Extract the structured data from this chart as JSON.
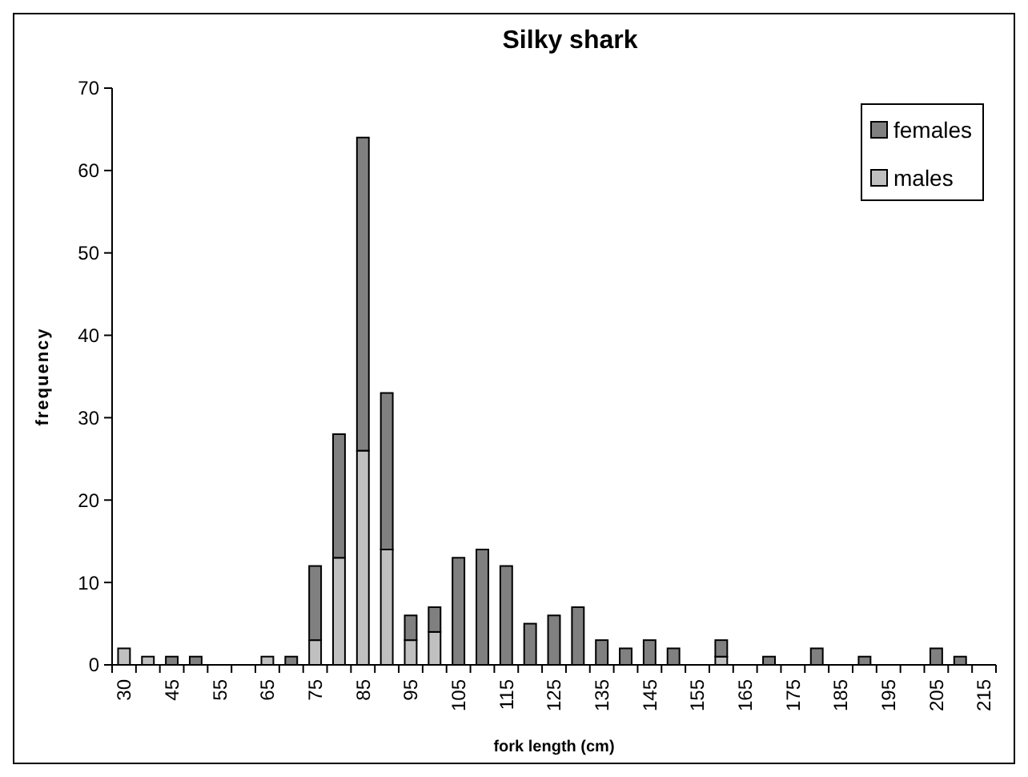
{
  "chart_data": {
    "type": "bar",
    "title": "Silky shark",
    "xlabel": "fork length (cm)",
    "ylabel": "frequency",
    "categories": [
      "30",
      null,
      "45",
      null,
      "55",
      null,
      "65",
      null,
      "75",
      null,
      "85",
      null,
      "95",
      null,
      "105",
      null,
      "115",
      null,
      "125",
      null,
      "135",
      null,
      "145",
      null,
      "155",
      null,
      "165",
      null,
      "175",
      null,
      "185",
      null,
      "195",
      null,
      "205",
      null,
      "215"
    ],
    "series": [
      {
        "name": "males",
        "color": "#c0c0c0",
        "values": [
          2,
          1,
          0,
          0,
          0,
          0,
          1,
          0,
          3,
          13,
          26,
          14,
          3,
          4,
          0,
          0,
          0,
          0,
          0,
          0,
          0,
          0,
          0,
          0,
          0,
          1,
          0,
          0,
          0,
          0,
          0,
          0,
          0,
          0,
          0,
          0,
          0
        ]
      },
      {
        "name": "females",
        "color": "#808080",
        "values": [
          0,
          0,
          1,
          1,
          0,
          0,
          0,
          1,
          9,
          15,
          38,
          19,
          3,
          3,
          13,
          14,
          12,
          5,
          6,
          7,
          3,
          2,
          3,
          2,
          0,
          2,
          0,
          1,
          0,
          2,
          0,
          1,
          0,
          0,
          2,
          1,
          0
        ]
      }
    ],
    "stacked": true,
    "ylim": [
      0,
      70
    ],
    "yticks": [
      0,
      10,
      20,
      30,
      40,
      50,
      60,
      70
    ],
    "grid": false,
    "legend": "top right"
  }
}
